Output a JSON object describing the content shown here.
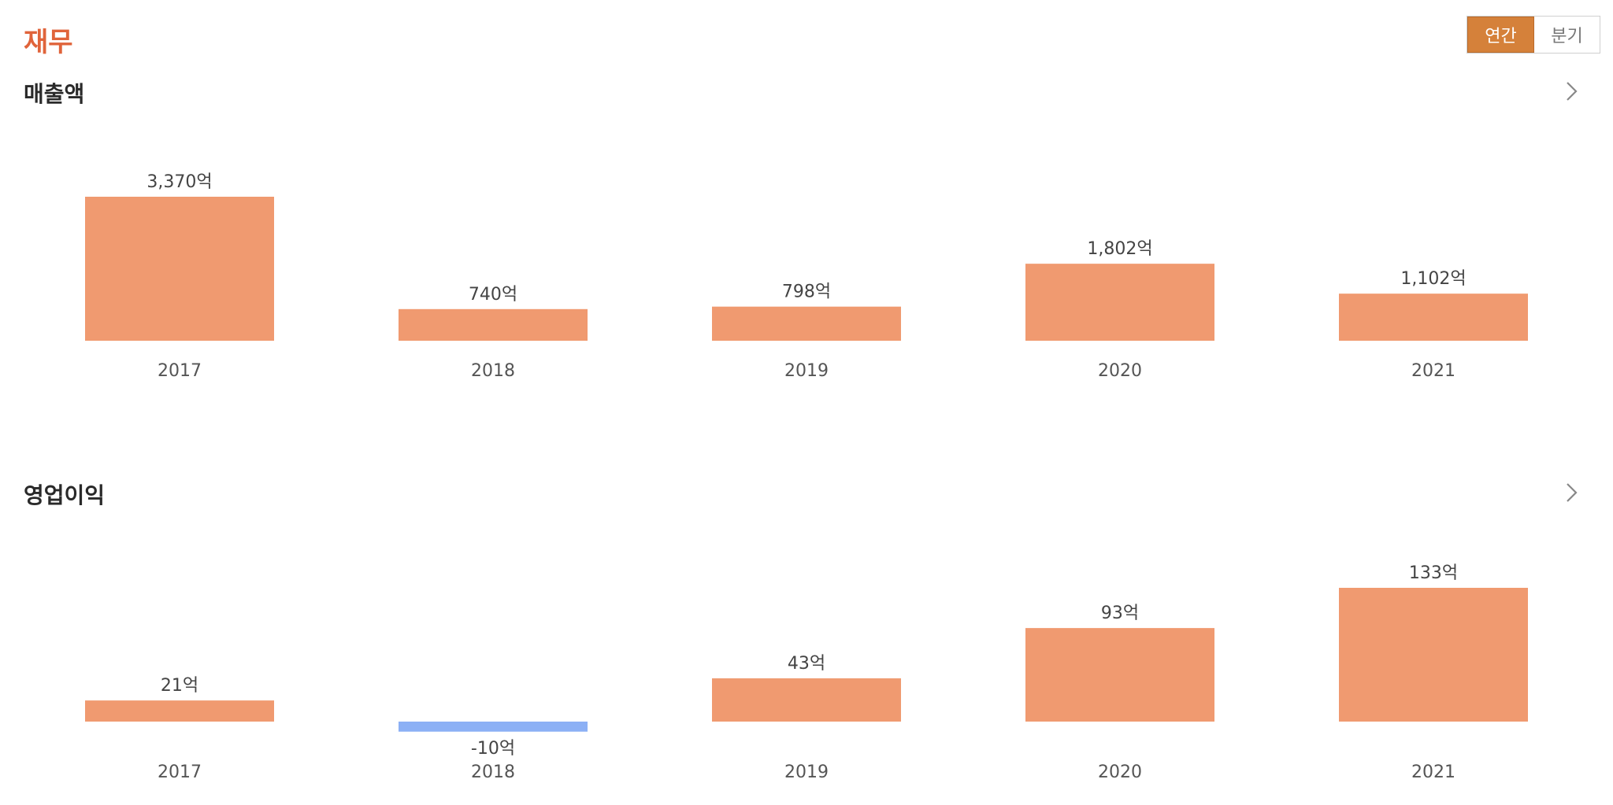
{
  "page": {
    "title": "재무"
  },
  "period_toggle": {
    "annual_label": "연간",
    "quarter_label": "분기",
    "selected": "연간"
  },
  "colors": {
    "accent": "#e0643b",
    "positive_bar": "#f09a70",
    "negative_bar": "#8cb0f5",
    "toggle_active": "#d5813a"
  },
  "icons": {
    "more": "chevron-right-icon"
  },
  "chart_data": [
    {
      "type": "bar",
      "title": "매출액",
      "unit": "억",
      "categories": [
        "2017",
        "2018",
        "2019",
        "2020",
        "2021"
      ],
      "values": [
        3370,
        740,
        798,
        1802,
        1102
      ],
      "labels": [
        "3,370억",
        "740억",
        "798억",
        "1,802억",
        "1,102억"
      ]
    },
    {
      "type": "bar",
      "title": "영업이익",
      "unit": "억",
      "categories": [
        "2017",
        "2018",
        "2019",
        "2020",
        "2021"
      ],
      "values": [
        21,
        -10,
        43,
        93,
        133
      ],
      "labels": [
        "21억",
        "-10억",
        "43억",
        "93억",
        "133억"
      ]
    }
  ]
}
